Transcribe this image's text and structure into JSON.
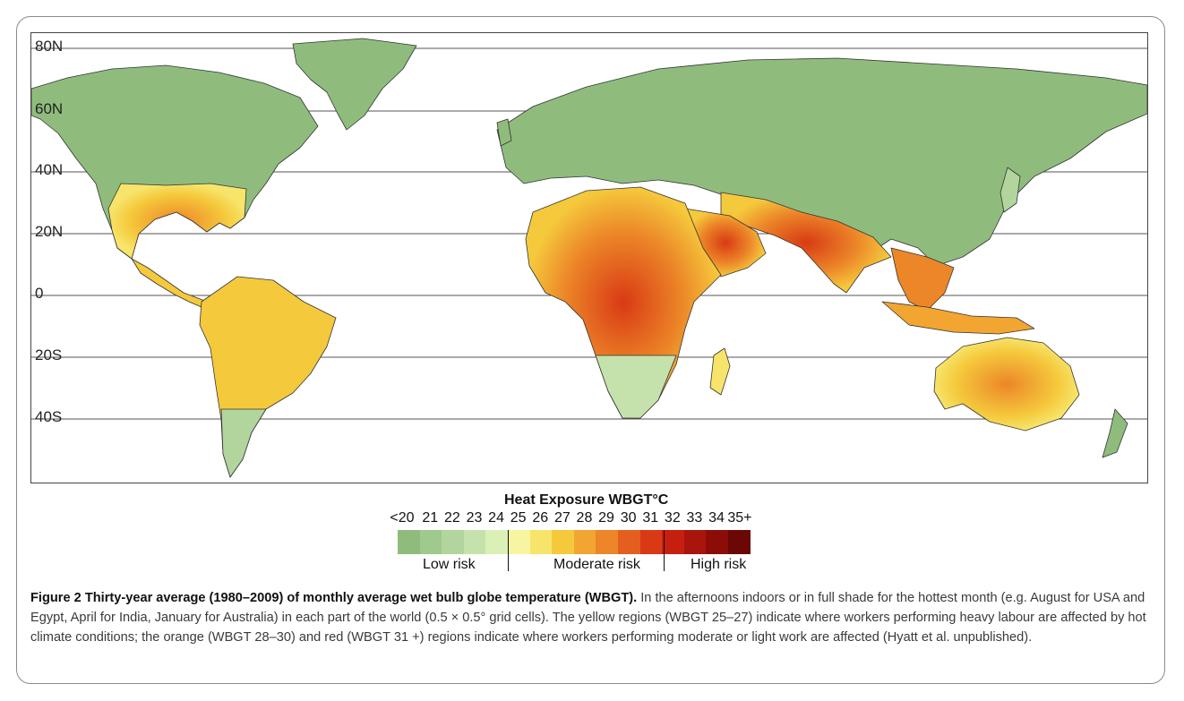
{
  "map": {
    "lat_labels": [
      "80N",
      "60N",
      "40N",
      "20N",
      "0",
      "20S",
      "40S"
    ]
  },
  "legend": {
    "title": "Heat Exposure WBGT°C",
    "ticks": [
      "<20",
      "21",
      "22",
      "23",
      "24",
      "25",
      "26",
      "27",
      "28",
      "29",
      "30",
      "31",
      "32",
      "33",
      "34",
      "35+"
    ],
    "colors": [
      "#8fbc7c",
      "#9fc98d",
      "#b1d59d",
      "#c6e2ac",
      "#dbf0b6",
      "#f8f5a2",
      "#f7e46a",
      "#f5c93c",
      "#f2a530",
      "#ec8628",
      "#e45f1f",
      "#d93a15",
      "#c71f0f",
      "#a9140c",
      "#8c0d08",
      "#6b0704"
    ],
    "risk_labels": [
      "Low risk",
      "Moderate risk",
      "High risk"
    ]
  },
  "caption": {
    "bold": "Figure 2 Thirty-year average (1980–2009) of monthly average wet bulb globe temperature (WBGT).",
    "text": " In the afternoons indoors or in full shade for the hottest month (e.g. August for USA and Egypt, April for India, January for Australia) in each part of the world (0.5 × 0.5° grid cells). The yellow regions (WBGT 25–27) indicate where workers performing heavy labour are affected by hot climate conditions; the orange (WBGT 28–30) and red (WBGT 31 +) regions indicate where workers performing moderate or light work are affected (Hyatt et al. unpublished)."
  }
}
